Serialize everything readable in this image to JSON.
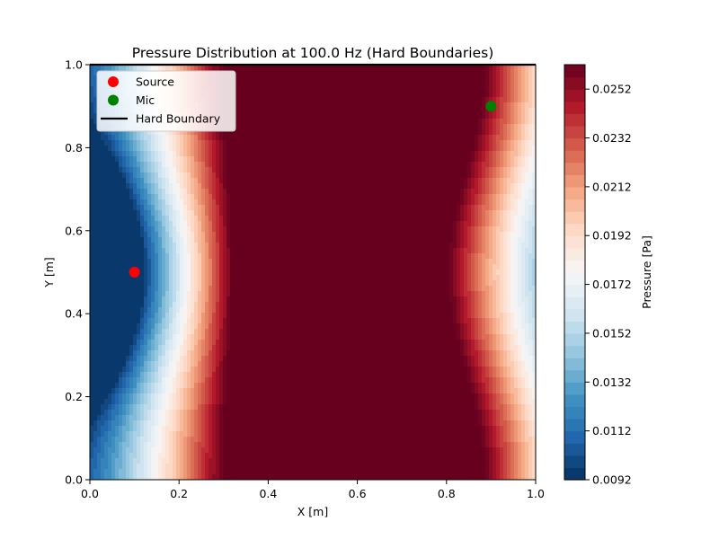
{
  "chart_data": {
    "type": "heatmap",
    "title": "Pressure Distribution at 100.0 Hz (Hard Boundaries)",
    "xlabel": "X [m]",
    "ylabel": "Y [m]",
    "xlim": [
      0,
      1
    ],
    "ylim": [
      0,
      1
    ],
    "x_ticks": [
      "0.0",
      "0.2",
      "0.4",
      "0.6",
      "0.8",
      "1.0"
    ],
    "y_ticks": [
      "0.0",
      "0.2",
      "0.4",
      "0.6",
      "0.8",
      "1.0"
    ],
    "grid": false,
    "colorbar": {
      "label": "Pressure [Pa]",
      "range": [
        0.0092,
        0.0262
      ],
      "ticks": [
        "0.0252",
        "0.0232",
        "0.0212",
        "0.0192",
        "0.0172",
        "0.0152",
        "0.0132",
        "0.0112",
        "0.0092"
      ],
      "colormap": "RdBu_r"
    },
    "points": [
      {
        "name": "Source",
        "x": 0.1,
        "y": 0.5,
        "color": "#ff0000"
      },
      {
        "name": "Mic",
        "x": 0.9,
        "y": 0.9,
        "color": "#008000"
      }
    ],
    "legend": {
      "position": "upper-left",
      "entries": [
        {
          "label": "Source",
          "marker": "circle",
          "color": "#ff0000"
        },
        {
          "label": "Mic",
          "marker": "circle",
          "color": "#008000"
        },
        {
          "label": "Hard Boundary",
          "marker": "line",
          "color": "#000000"
        }
      ]
    }
  }
}
